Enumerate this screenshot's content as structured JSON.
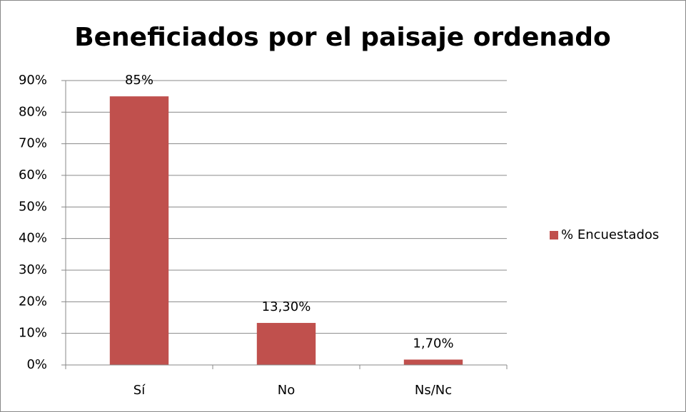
{
  "chart_data": {
    "type": "bar",
    "title": "Beneficiados por el paisaje ordenado",
    "categories": [
      "Sí",
      "No",
      "Ns/Nc"
    ],
    "series": [
      {
        "name": "% Encuestados",
        "color": "#c0504d",
        "values": [
          85,
          13.3,
          1.7
        ],
        "value_labels": [
          "85%",
          "13,30%",
          "1,70%"
        ]
      }
    ],
    "ylim": [
      0,
      90
    ],
    "yticks": [
      {
        "value": 0,
        "label": "0%"
      },
      {
        "value": 10,
        "label": "10%"
      },
      {
        "value": 20,
        "label": "20%"
      },
      {
        "value": 30,
        "label": "30%"
      },
      {
        "value": 40,
        "label": "40%"
      },
      {
        "value": 50,
        "label": "50%"
      },
      {
        "value": 60,
        "label": "60%"
      },
      {
        "value": 70,
        "label": "70%"
      },
      {
        "value": 80,
        "label": "80%"
      },
      {
        "value": 90,
        "label": "90%"
      }
    ],
    "grid": true,
    "legend": "right"
  }
}
